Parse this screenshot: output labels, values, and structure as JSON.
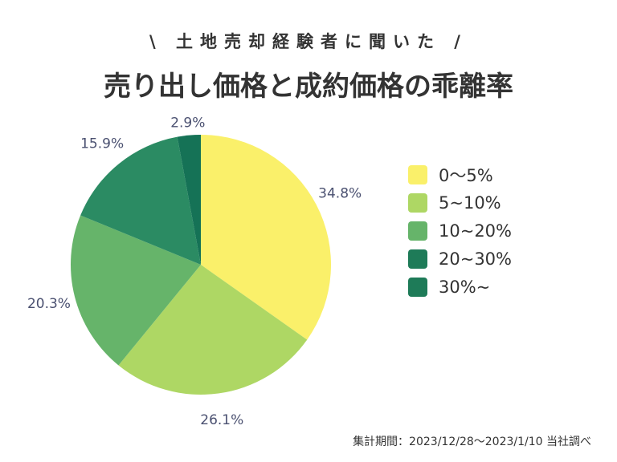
{
  "subtitle": "\\ 土地売却経験者に聞いた /",
  "title": "売り出し価格と成約価格の乖離率",
  "note": "集計期間：2023/12/28〜2023/1/10 当社調べ",
  "chart_data": {
    "type": "pie",
    "start": "top",
    "direction": "clockwise",
    "categories": [
      "0〜5%",
      "5~10%",
      "10~20%",
      "20~30%",
      "30%~"
    ],
    "values": [
      34.8,
      26.1,
      20.3,
      15.9,
      2.9
    ],
    "labels": [
      "34.8%",
      "26.1%",
      "20.3%",
      "15.9%",
      "2.9%"
    ],
    "colors": [
      "#faf06a",
      "#aed764",
      "#66b46a",
      "#2b8b63",
      "#157256"
    ],
    "legend_colors": [
      "#faf06a",
      "#aed764",
      "#66b46a",
      "#1e7b58",
      "#1e7b58"
    ],
    "label_color": "#4a5070",
    "legend": "right"
  }
}
